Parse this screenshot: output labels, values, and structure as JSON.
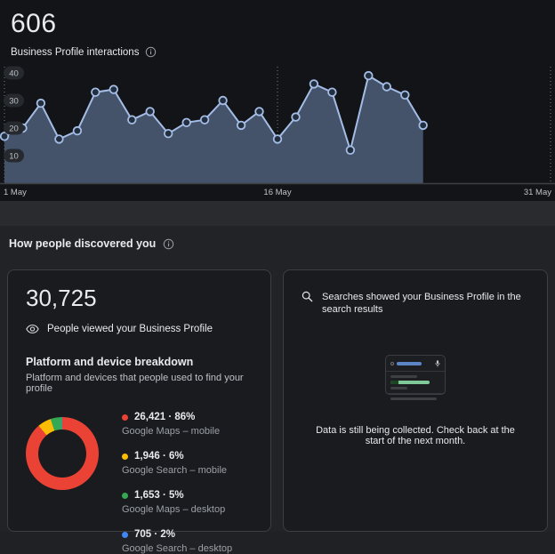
{
  "header": {
    "metric_value": "606",
    "metric_label": "Business Profile interactions"
  },
  "chart_data": [
    {
      "type": "area",
      "title": "Business Profile interactions",
      "total_label": "606",
      "x_unit": "day of May",
      "x": [
        1,
        2,
        3,
        4,
        5,
        6,
        7,
        8,
        9,
        10,
        11,
        12,
        13,
        14,
        15,
        16,
        17,
        18,
        19,
        20,
        21,
        22,
        23,
        24
      ],
      "values": [
        17,
        20,
        29,
        16,
        19,
        33,
        34,
        23,
        26,
        18,
        22,
        23,
        30,
        21,
        26,
        16,
        24,
        36,
        33,
        12,
        39,
        35,
        32,
        21
      ],
      "days_total": 31,
      "x_ticks": [
        {
          "label": "1 May",
          "day": 1,
          "anchor": "start"
        },
        {
          "label": "16 May",
          "day": 16,
          "anchor": "middle"
        },
        {
          "label": "31 May",
          "day": 31,
          "anchor": "end"
        }
      ],
      "y_ticks": [
        40,
        30,
        20,
        10
      ],
      "ylim": [
        0,
        44
      ],
      "grid": false,
      "legend": "none",
      "line_color": "#a4bde6",
      "fill_color": "#445369",
      "marker_fill": "#232e3e",
      "axis_label_color": "#bdc1c6",
      "baseline_color": "#3c4043",
      "dotted_line_color": "#898e94"
    },
    {
      "type": "donut",
      "title": "Platform and device breakdown",
      "start_angle_deg": 10,
      "segments": [
        {
          "label": "Google Maps – mobile",
          "value": 26421,
          "pct": 86,
          "display": "26,421 · 86%",
          "color": "#EA4335"
        },
        {
          "label": "Google Search – mobile",
          "value": 1946,
          "pct": 6,
          "display": "1,946 · 6%",
          "color": "#FBBC04"
        },
        {
          "label": "Google Maps – desktop",
          "value": 1653,
          "pct": 5,
          "display": "1,653 · 5%",
          "color": "#34A853"
        },
        {
          "label": "Google Search – desktop",
          "value": 705,
          "pct": 2,
          "display": "705 · 2%",
          "color": "#4285F4"
        }
      ]
    }
  ],
  "discovery": {
    "section_title": "How people discovered you",
    "views_card": {
      "value": "30,725",
      "label": "People viewed your Business Profile",
      "breakdown_title": "Platform and device breakdown",
      "breakdown_subtitle": "Platform and devices that people used to find your profile"
    },
    "searches_card": {
      "header": "Searches showed your Business Profile in the search results",
      "message": "Data is still being collected. Check back at the start of the next month."
    }
  }
}
